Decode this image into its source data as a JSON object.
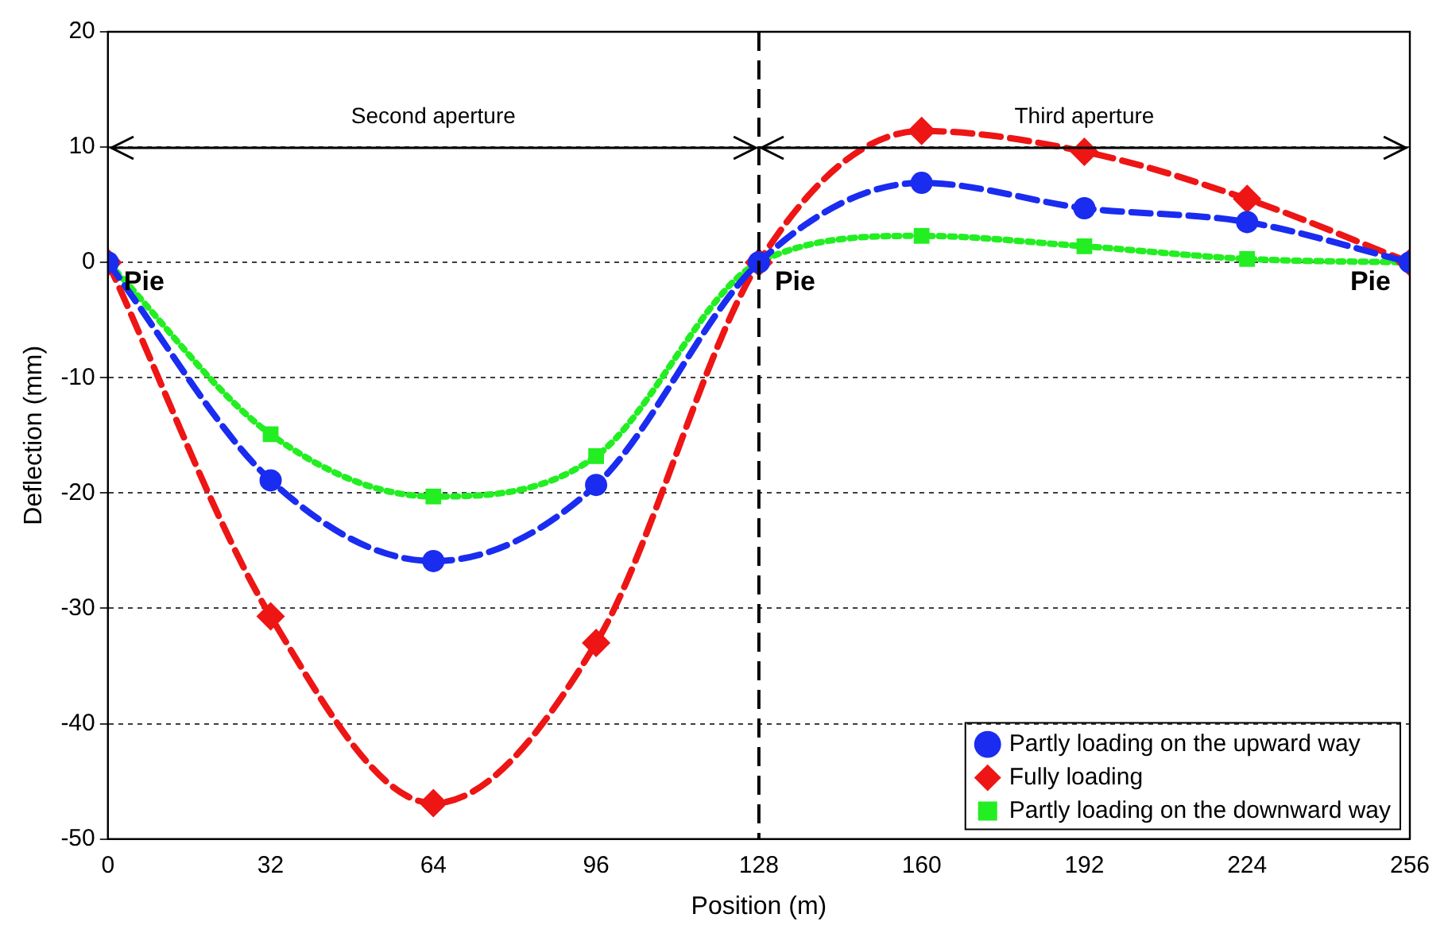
{
  "chart_data": {
    "type": "line",
    "xlabel": "Position (m)",
    "ylabel": "Deflection (mm)",
    "x": [
      0,
      32,
      64,
      96,
      128,
      160,
      192,
      224,
      256
    ],
    "xlim": [
      0,
      256
    ],
    "xticks": [
      0,
      32,
      64,
      96,
      128,
      160,
      192,
      224,
      256
    ],
    "ylim": [
      -50,
      20
    ],
    "yticks": [
      -50,
      -40,
      -30,
      -20,
      -10,
      0,
      10,
      20
    ],
    "grid": "y",
    "legend": "bottom right",
    "series": [
      {
        "name": "Partly loading on the upward way",
        "color": "#1a2cf0",
        "marker": "circle",
        "line_style": "dashed",
        "values": [
          0,
          -18.9,
          -25.9,
          -19.3,
          0,
          6.9,
          4.7,
          3.5,
          0
        ]
      },
      {
        "name": "Fully loading",
        "color": "#ee1515",
        "marker": "diamond",
        "line_style": "dashed",
        "values": [
          0,
          -30.7,
          -46.9,
          -33,
          0,
          11.4,
          9.6,
          5.5,
          0
        ]
      },
      {
        "name": "Partly loading on the downward way",
        "color": "#22ee22",
        "marker": "square",
        "line_style": "dotted",
        "values": [
          0,
          -14.9,
          -20.3,
          -16.8,
          0,
          2.3,
          1.4,
          0.3,
          0
        ]
      }
    ],
    "ref_lines": [
      {
        "axis": "x",
        "value": 128,
        "line_style": "dashed",
        "color": "#000000"
      }
    ],
    "annotations": [
      "Second aperture",
      "Third aperture",
      {
        "text": "Pie",
        "x": 0,
        "y": 0
      },
      {
        "text": "Pie",
        "x": 128,
        "y": 0
      },
      {
        "text": "Pie",
        "x": 256,
        "y": 0
      }
    ]
  }
}
